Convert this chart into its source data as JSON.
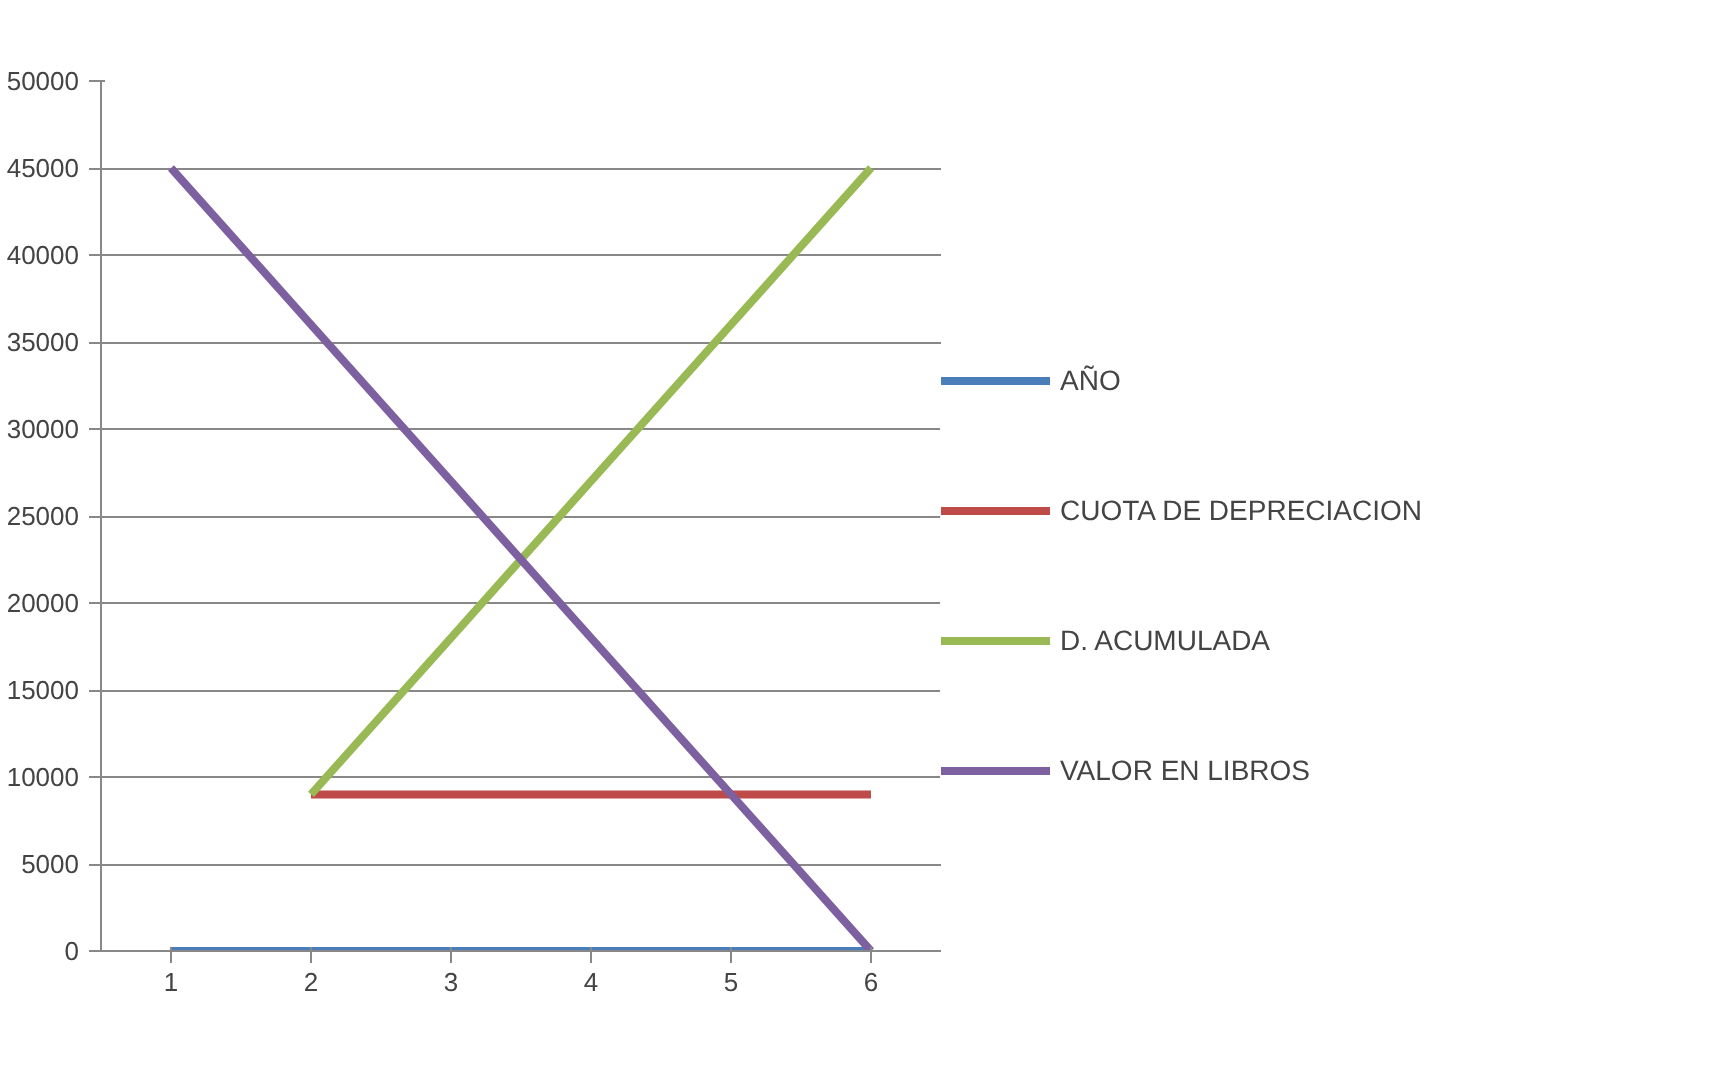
{
  "chart_data": {
    "type": "line",
    "categories": [
      "1",
      "2",
      "3",
      "4",
      "5",
      "6"
    ],
    "series": [
      {
        "name": "AÑO",
        "color": "#4a7ebb",
        "values": [
          0,
          0,
          0,
          0,
          0,
          0
        ]
      },
      {
        "name": "CUOTA DE DEPRECIACION",
        "color": "#be4b48",
        "values": [
          null,
          9000,
          9000,
          9000,
          9000,
          9000
        ]
      },
      {
        "name": "D. ACUMULADA",
        "color": "#98b954",
        "values": [
          null,
          9000,
          18000,
          27000,
          36000,
          45000
        ]
      },
      {
        "name": "VALOR EN LIBROS",
        "color": "#7d60a0",
        "values": [
          45000,
          36000,
          27000,
          18000,
          9000,
          0
        ]
      }
    ],
    "ylim": [
      0,
      50000
    ],
    "yticks": [
      0,
      5000,
      10000,
      15000,
      20000,
      25000,
      30000,
      35000,
      40000,
      45000,
      50000
    ],
    "grid": "y",
    "legend": "right",
    "marker": "none",
    "line_style": "solid"
  }
}
